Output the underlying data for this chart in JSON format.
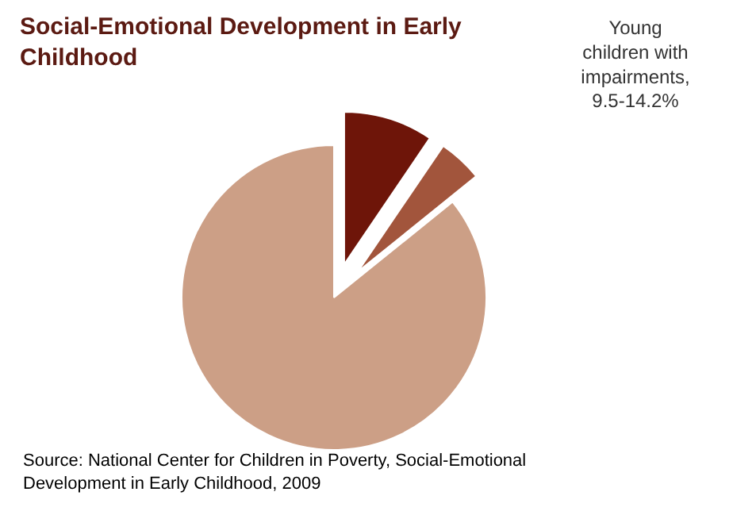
{
  "chart_data": {
    "type": "pie",
    "title": "Social-Emotional Development in Early Childhood",
    "categories": [
      null,
      null,
      null
    ],
    "values": [
      9.5,
      4.7,
      85.8
    ],
    "colors": [
      "#6e1509",
      "#a2553c",
      "#cc9f86"
    ],
    "annotations": [
      "Young children with impairments, 9.5-14.2%",
      "Source: National Center for Children in Poverty, Social-Emotional Development in  Early Childhood, 2009"
    ]
  }
}
